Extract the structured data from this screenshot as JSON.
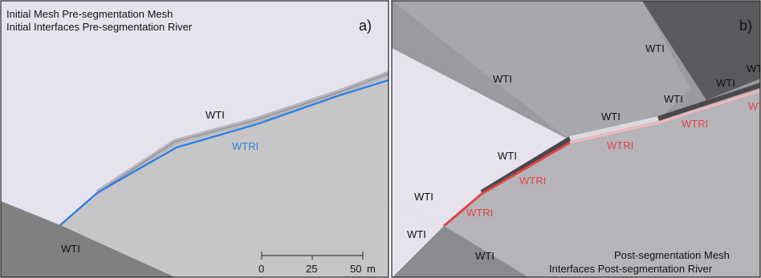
{
  "panel_a": {
    "legend_line1": "Initial Mesh Pre-segmentation Mesh",
    "legend_line2": "Initial Interfaces Pre-segmentation River",
    "panel_letter": "a)",
    "label_wti_top": "WTI",
    "label_wtri": "WTRI",
    "label_wti_bottom": "WTI",
    "scalebar": {
      "ticks": [
        "0",
        "25",
        "50"
      ],
      "unit": "m"
    }
  },
  "panel_b": {
    "panel_letter": "b)",
    "wti_labels": [
      "WTI",
      "WTI",
      "WTI",
      "WTI",
      "WTI",
      "WTI",
      "WTI",
      "WTI",
      "WTI",
      "WTI"
    ],
    "wtri_labels": [
      "WTRI",
      "WTRI",
      "WTRI",
      "WTRI",
      "WTRI"
    ],
    "legend_line1": "Post-segmentation Mesh",
    "legend_line2": "Interfaces Post-segmentation River"
  },
  "colors": {
    "panel_a_light": "#e6e3ef",
    "panel_a_medium": "#c6c6c8",
    "panel_a_dark": "#808082",
    "river_blue": "#2f7fe0",
    "wti_grey": "#b7b5bb",
    "wtri_red": "#e04545",
    "wtri_pink": "#f0b8bc"
  }
}
